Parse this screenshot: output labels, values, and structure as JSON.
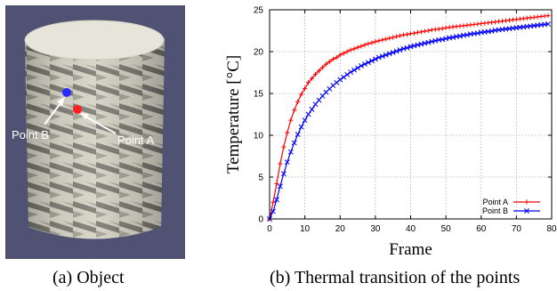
{
  "left_panel": {
    "caption": "(a) Object",
    "point_b_label": "Point B",
    "point_a_label": "Point A",
    "point_a_color": "#ff2020",
    "point_b_color": "#2a2aff",
    "background_color": "#4f5272",
    "object_color": "#e7e4d9"
  },
  "right_panel": {
    "caption": "(b) Thermal transition of the points"
  },
  "chart_data": {
    "type": "line",
    "xlabel": "Frame",
    "ylabel": "Temperature [°C]",
    "xlim": [
      0,
      80
    ],
    "ylim": [
      0,
      25
    ],
    "x_ticks": [
      0,
      10,
      20,
      30,
      40,
      50,
      60,
      70,
      80
    ],
    "y_ticks": [
      0,
      5,
      10,
      15,
      20,
      25
    ],
    "grid": true,
    "legend_position": "bottom-right",
    "series": [
      {
        "name": "Point A",
        "color": "#ff0000",
        "marker": "plus",
        "x": [
          0,
          1,
          2,
          3,
          4,
          5,
          6,
          7,
          8,
          9,
          10,
          11,
          12,
          13,
          14,
          15,
          16,
          17,
          18,
          19,
          20,
          21,
          22,
          23,
          24,
          25,
          26,
          27,
          28,
          29,
          30,
          31,
          32,
          33,
          34,
          35,
          36,
          37,
          38,
          39,
          40,
          41,
          42,
          43,
          44,
          45,
          46,
          47,
          48,
          49,
          50,
          51,
          52,
          53,
          54,
          55,
          56,
          57,
          58,
          59,
          60,
          61,
          62,
          63,
          64,
          65,
          66,
          67,
          68,
          69,
          70,
          71,
          72,
          73,
          74,
          75,
          76,
          77,
          78,
          79
        ],
        "y": [
          0,
          2,
          4.2,
          6.6,
          8.6,
          10.3,
          11.8,
          13.0,
          14.0,
          14.9,
          15.6,
          16.3,
          16.8,
          17.3,
          17.7,
          18.1,
          18.5,
          18.8,
          19.1,
          19.3,
          19.6,
          19.8,
          20.0,
          20.2,
          20.35,
          20.5,
          20.65,
          20.8,
          20.95,
          21.05,
          21.2,
          21.3,
          21.4,
          21.5,
          21.6,
          21.7,
          21.8,
          21.9,
          22.0,
          22.05,
          22.15,
          22.2,
          22.3,
          22.35,
          22.45,
          22.5,
          22.6,
          22.65,
          22.7,
          22.75,
          22.85,
          22.9,
          22.95,
          23.0,
          23.05,
          23.1,
          23.15,
          23.2,
          23.25,
          23.3,
          23.35,
          23.4,
          23.45,
          23.5,
          23.55,
          23.6,
          23.65,
          23.7,
          23.75,
          23.8,
          23.85,
          23.9,
          23.95,
          24.0,
          24.05,
          24.1,
          24.15,
          24.2,
          24.25,
          24.3
        ]
      },
      {
        "name": "Point B",
        "color": "#0000ff",
        "marker": "x",
        "x": [
          0,
          1,
          2,
          3,
          4,
          5,
          6,
          7,
          8,
          9,
          10,
          11,
          12,
          13,
          14,
          15,
          16,
          17,
          18,
          19,
          20,
          21,
          22,
          23,
          24,
          25,
          26,
          27,
          28,
          29,
          30,
          31,
          32,
          33,
          34,
          35,
          36,
          37,
          38,
          39,
          40,
          41,
          42,
          43,
          44,
          45,
          46,
          47,
          48,
          49,
          50,
          51,
          52,
          53,
          54,
          55,
          56,
          57,
          58,
          59,
          60,
          61,
          62,
          63,
          64,
          65,
          66,
          67,
          68,
          69,
          70,
          71,
          72,
          73,
          74,
          75,
          76,
          77,
          78,
          79
        ],
        "y": [
          0,
          0.9,
          2.3,
          3.9,
          5.4,
          6.8,
          8.0,
          9.1,
          10.1,
          11.0,
          11.8,
          12.5,
          13.1,
          13.7,
          14.2,
          14.7,
          15.15,
          15.55,
          15.95,
          16.3,
          16.65,
          16.95,
          17.25,
          17.55,
          17.8,
          18.05,
          18.3,
          18.5,
          18.7,
          18.9,
          19.1,
          19.3,
          19.45,
          19.6,
          19.75,
          19.9,
          20.05,
          20.2,
          20.35,
          20.45,
          20.6,
          20.7,
          20.8,
          20.9,
          21.0,
          21.1,
          21.2,
          21.3,
          21.4,
          21.45,
          21.55,
          21.65,
          21.7,
          21.8,
          21.85,
          21.95,
          22.0,
          22.1,
          22.15,
          22.2,
          22.3,
          22.35,
          22.4,
          22.45,
          22.55,
          22.6,
          22.65,
          22.7,
          22.75,
          22.8,
          22.85,
          22.9,
          22.95,
          23.0,
          23.05,
          23.1,
          23.15,
          23.2,
          23.25,
          23.3
        ]
      }
    ]
  }
}
